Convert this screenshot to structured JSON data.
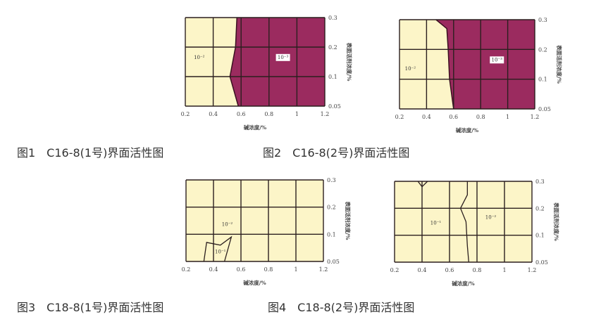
{
  "colors": {
    "low": "#fcf5c8",
    "high": "#9b2b5f",
    "grid": "#2b1f1f"
  },
  "chart_data": [
    {
      "type": "heatmap",
      "xlabel": "碱浓度/%",
      "ylabel": "表面活剂浓度/%",
      "xticks": [
        "0.2",
        "0.4",
        "0.6",
        "0.8",
        "1",
        "1.2"
      ],
      "yticks": [
        "0.3",
        "0.2",
        "0.1",
        "0.05"
      ],
      "xlim": [
        0.2,
        1.2
      ],
      "ylim": [
        0.05,
        0.3
      ],
      "regions": [
        {
          "label": "10⁻²",
          "fill": "low",
          "lx": 0.3,
          "ly": 0.16
        },
        {
          "label": "10⁻³",
          "fill": "high",
          "lx": 0.9,
          "ly": 0.16
        }
      ],
      "boundary": [
        [
          0.57,
          0.3
        ],
        [
          0.56,
          0.2
        ],
        [
          0.52,
          0.1
        ],
        [
          0.58,
          0.05
        ]
      ],
      "highSide": "right"
    },
    {
      "type": "heatmap",
      "xlabel": "碱浓度/%",
      "ylabel": "表面活剂浓度/%",
      "xticks": [
        "0.2",
        "0.4",
        "0.6",
        "0.8",
        "1",
        "1.2"
      ],
      "yticks": [
        "0.3",
        "0.2",
        "0.1",
        "0.05"
      ],
      "xlim": [
        0.2,
        1.2
      ],
      "ylim": [
        0.05,
        0.3
      ],
      "regions": [
        {
          "label": "10⁻²",
          "fill": "low",
          "lx": 0.28,
          "ly": 0.13
        },
        {
          "label": "10⁻³",
          "fill": "high",
          "lx": 0.92,
          "ly": 0.16
        }
      ],
      "boundary": [
        [
          0.47,
          0.3
        ],
        [
          0.55,
          0.27
        ],
        [
          0.56,
          0.2
        ],
        [
          0.57,
          0.1
        ],
        [
          0.6,
          0.05
        ]
      ],
      "highSide": "right"
    },
    {
      "type": "heatmap",
      "xlabel": "碱浓度/%",
      "ylabel": "表面活剂浓度/%",
      "xticks": [
        "0.2",
        "0.4",
        "0.6",
        "0.8",
        "1",
        "1.2"
      ],
      "yticks": [
        "0.3",
        "0.2",
        "0.1",
        "0.05"
      ],
      "xlim": [
        0.2,
        1.2
      ],
      "ylim": [
        0.05,
        0.3
      ],
      "regions": [
        {
          "label": "10⁻²",
          "fill": "low",
          "lx": 0.5,
          "ly": 0.13
        },
        {
          "label": "10⁻¹",
          "fill": "low",
          "lx": 0.45,
          "ly": 0.065
        }
      ],
      "polygon": [
        [
          0.33,
          0.05
        ],
        [
          0.35,
          0.085
        ],
        [
          0.45,
          0.08
        ],
        [
          0.53,
          0.095
        ],
        [
          0.48,
          0.05
        ]
      ]
    },
    {
      "type": "heatmap",
      "xlabel": "碱浓度/%",
      "ylabel": "表面活剂浓度/%",
      "xticks": [
        "0.2",
        "0.4",
        "0.6",
        "0.8",
        "1",
        "1.2"
      ],
      "yticks": [
        "0.3",
        "0.2",
        "0.1",
        "0.05"
      ],
      "xlim": [
        0.2,
        1.2
      ],
      "ylim": [
        0.05,
        0.3
      ],
      "regions": [
        {
          "label": "10⁻¹",
          "fill": "low",
          "lx": 0.5,
          "ly": 0.14
        },
        {
          "label": "10⁻²",
          "fill": "low",
          "lx": 0.9,
          "ly": 0.16
        }
      ],
      "lines": [
        [
          [
            0.73,
            0.3
          ],
          [
            0.73,
            0.25
          ],
          [
            0.68,
            0.2
          ],
          [
            0.72,
            0.15
          ],
          [
            0.73,
            0.08
          ],
          [
            0.74,
            0.05
          ]
        ],
        [
          [
            0.37,
            0.3
          ],
          [
            0.4,
            0.28
          ],
          [
            0.44,
            0.3
          ]
        ]
      ]
    }
  ],
  "captions": [
    "图1　C16-8(1号)界面活性图",
    "图2　C16-8(2号)界面活性图",
    "图3　C18-8(1号)界面活性图",
    "图4　C18-8(2号)界面活性图"
  ]
}
